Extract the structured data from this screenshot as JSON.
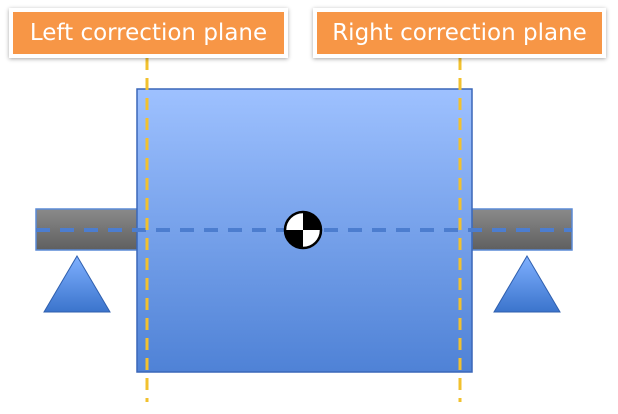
{
  "labels": {
    "left_plane": "Left correction plane",
    "right_plane": "Right correction plane"
  },
  "colors": {
    "label_fill": "#f79646",
    "rotor_top": "#9ec1ff",
    "rotor_bottom": "#4f82d6",
    "rotor_edge": "#3a67b8",
    "shaft_top": "#8a8a8a",
    "shaft_bottom": "#5f5f5f",
    "support_top": "#7fb0ff",
    "support_bottom": "#3b74cc",
    "plane_line": "#f2c12e",
    "axis_line": "#5a8ad6"
  },
  "icons": {
    "center_of_mass": "center-of-mass-icon",
    "support": "triangle-support-icon"
  }
}
